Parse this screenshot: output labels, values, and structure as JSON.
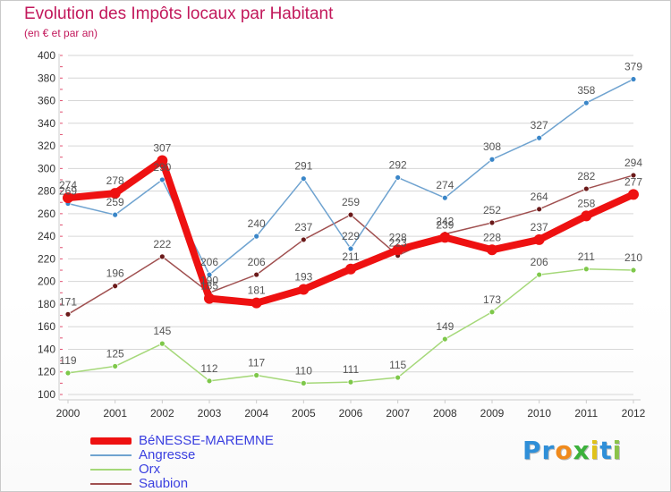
{
  "title": "Evolution des Impôts locaux par Habitant",
  "subtitle": "(en € et par an)",
  "logo": {
    "text": "Proxiti",
    "letters": [
      {
        "ch": "P",
        "color": "#2f8fd8"
      },
      {
        "ch": "r",
        "color": "#2f8fd8"
      },
      {
        "ch": "o",
        "color": "#f08a1c"
      },
      {
        "ch": "x",
        "color": "#3bb13b"
      },
      {
        "ch": "i",
        "color": "#e0c21a"
      },
      {
        "ch": "t",
        "color": "#2f8fd8"
      },
      {
        "ch": "i",
        "color": "#8bc34a"
      }
    ]
  },
  "chart_data": {
    "type": "line",
    "title": "Evolution des Impôts locaux par Habitant",
    "subtitle": "(en € et par an)",
    "xlabel": "",
    "ylabel": "",
    "x": [
      "2000",
      "2001",
      "2002",
      "2003",
      "2004",
      "2005",
      "2006",
      "2007",
      "2008",
      "2009",
      "2010",
      "2011",
      "2012"
    ],
    "ylim": [
      100,
      400
    ],
    "yticks": [
      100,
      120,
      140,
      160,
      180,
      200,
      220,
      240,
      260,
      280,
      300,
      320,
      340,
      360,
      380,
      400
    ],
    "grid": true,
    "legend_position": "bottom-left",
    "series": [
      {
        "name": "Orx",
        "color": "#a5d879",
        "marker": "#7ec84a",
        "values": [
          119,
          125,
          145,
          112,
          117,
          110,
          111,
          115,
          149,
          173,
          206,
          211,
          210
        ]
      },
      {
        "name": "Saubion",
        "color": "#a05050",
        "marker": "#6b1a1a",
        "values": [
          171,
          196,
          222,
          190,
          206,
          237,
          259,
          223,
          242,
          252,
          264,
          282,
          294
        ]
      },
      {
        "name": "Angresse",
        "color": "#6fa3d0",
        "marker": "#3a86c8",
        "values": [
          269,
          259,
          290,
          206,
          240,
          291,
          229,
          292,
          274,
          308,
          327,
          358,
          379
        ]
      },
      {
        "name": "BéNESSE-MAREMNE",
        "color": "#ee1111",
        "marker": "#ee1111",
        "values": [
          274,
          278,
          307,
          185,
          181,
          193,
          211,
          228,
          239,
          228,
          237,
          258,
          277
        ],
        "bold": true
      }
    ]
  },
  "legend": [
    {
      "label": "BéNESSE-MAREMNE",
      "color": "#ee1111",
      "width": 8
    },
    {
      "label": "Angresse",
      "color": "#6fa3d0",
      "width": 2
    },
    {
      "label": "Orx",
      "color": "#a5d879",
      "width": 2
    },
    {
      "label": "Saubion",
      "color": "#a05050",
      "width": 2
    }
  ]
}
